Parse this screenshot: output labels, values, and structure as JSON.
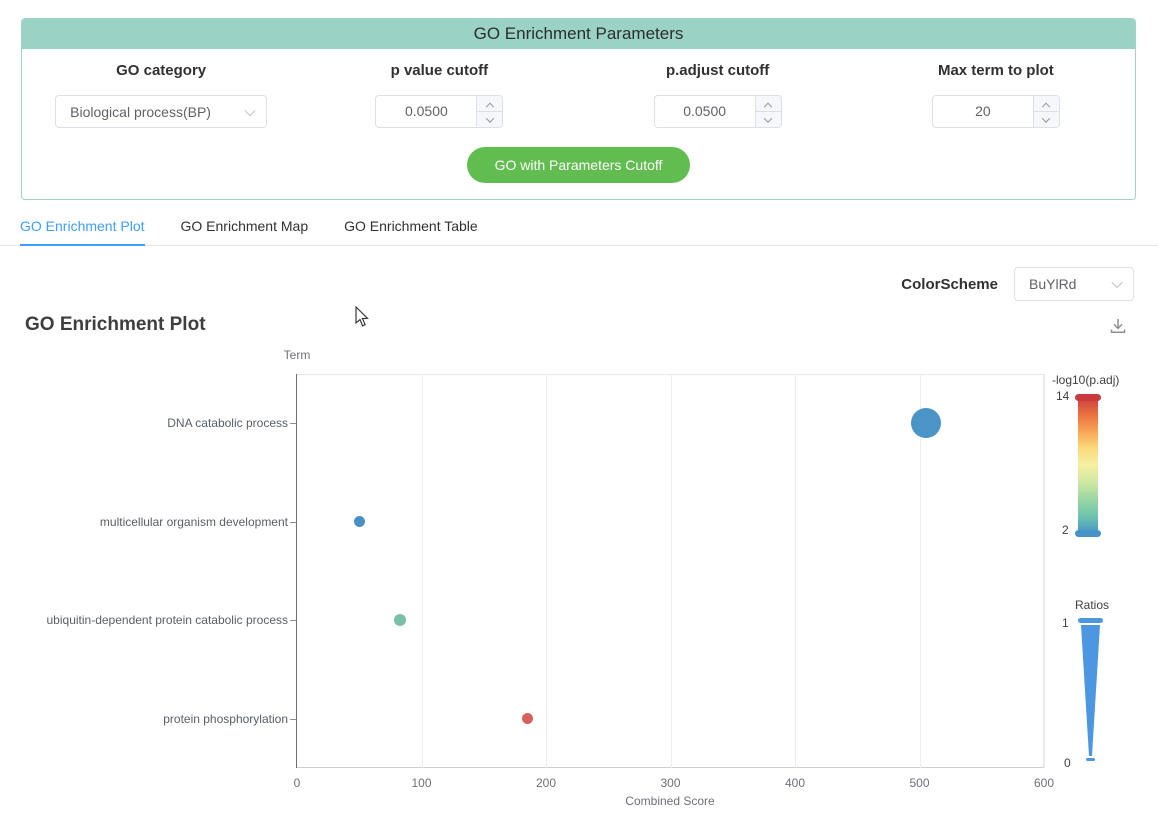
{
  "colors": {
    "header_bg": "#9ad3c6",
    "panel_border": "#9fd4c7",
    "button_green": "#61bd4f",
    "tab_active": "#409eff"
  },
  "params_panel": {
    "title": "GO Enrichment Parameters",
    "fields": [
      {
        "label": "GO category",
        "value": "Biological process(BP)"
      },
      {
        "label": "p value cutoff",
        "value": "0.0500"
      },
      {
        "label": "p.adjust cutoff",
        "value": "0.0500"
      },
      {
        "label": "Max term to plot",
        "value": "20"
      }
    ],
    "submit_label": "GO with Parameters Cutoff"
  },
  "tabs": [
    {
      "label": "GO Enrichment Plot",
      "active": true
    },
    {
      "label": "GO Enrichment Map",
      "active": false
    },
    {
      "label": "GO Enrichment Table",
      "active": false
    }
  ],
  "toolbar": {
    "colorscheme_label": "ColorScheme",
    "colorscheme_value": "BuYlRd"
  },
  "section": {
    "title": "GO Enrichment Plot"
  },
  "chart_data": {
    "type": "scatter",
    "title": "GO Enrichment Plot",
    "xlabel": "Combined Score",
    "ylabel": "Term",
    "xlim": [
      0,
      600
    ],
    "x_ticks": [
      0,
      100,
      200,
      300,
      400,
      500,
      600
    ],
    "grid": true,
    "legend_position": "right",
    "categories": [
      "DNA catabolic process",
      "multicellular organism development",
      "ubiquitin-dependent protein catabolic process",
      "protein phosphorylation"
    ],
    "points": [
      {
        "term": "DNA catabolic process",
        "combined_score": 505,
        "neg_log10_padj": 2.3,
        "ratio": 1.0,
        "radius_px": 15,
        "color": "#4a94c8"
      },
      {
        "term": "multicellular organism development",
        "combined_score": 50,
        "neg_log10_padj": 2.6,
        "ratio": 0.35,
        "radius_px": 5.5,
        "color": "#4a90c6"
      },
      {
        "term": "ubiquitin-dependent protein catabolic process",
        "combined_score": 83,
        "neg_log10_padj": 6.0,
        "ratio": 0.38,
        "radius_px": 6,
        "color": "#78c0a8"
      },
      {
        "term": "protein phosphorylation",
        "combined_score": 185,
        "neg_log10_padj": 13.5,
        "ratio": 0.35,
        "radius_px": 5.5,
        "color": "#d8605c"
      }
    ],
    "color_legend": {
      "title": "-log10(p.adj)",
      "max_label": "14",
      "min_label": "2",
      "gradient_top_to_bottom": [
        "#cb3d3d",
        "#e8703f",
        "#f7a456",
        "#fcd97c",
        "#f6f0a2",
        "#cfe8a2",
        "#9bd7a4",
        "#6ec5ab",
        "#4693ca"
      ],
      "top_cap_color": "#c93a3c",
      "bottom_cap_color": "#4693ca"
    },
    "size_legend": {
      "title": "Ratios",
      "max_label": "1",
      "min_label": "0",
      "color": "#4d97e0"
    }
  }
}
